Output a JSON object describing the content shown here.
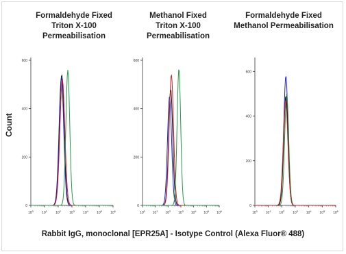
{
  "ylabel": "Count",
  "caption": "Rabbit IgG, monoclonal [EPR25A] - Isotype Control (Alexa Fluor® 488)",
  "colors": {
    "blue": "#2222cc",
    "red": "#cc2222",
    "green": "#229944",
    "black": "#111111"
  },
  "chart_data": [
    {
      "type": "line",
      "title_lines": [
        "Formaldehyde Fixed",
        "Triton X-100 Permeabilisation"
      ],
      "xscale": "log",
      "xlim": [
        1,
        1000000
      ],
      "ylim": [
        0,
        600
      ],
      "yticks": [
        0,
        200,
        400,
        600
      ],
      "series": [
        {
          "color": "black",
          "peak_x": 180,
          "peak_y": 540,
          "width": 0.17
        },
        {
          "color": "blue",
          "peak_x": 170,
          "peak_y": 530,
          "width": 0.17
        },
        {
          "color": "red",
          "peak_x": 200,
          "peak_y": 520,
          "width": 0.18
        },
        {
          "color": "green",
          "peak_x": 500,
          "peak_y": 560,
          "width": 0.14
        }
      ]
    },
    {
      "type": "line",
      "title_lines": [
        "Methanol Fixed",
        "Triton X-100 Permeabilisation"
      ],
      "xscale": "log",
      "xlim": [
        1,
        1000000
      ],
      "ylim": [
        0,
        600
      ],
      "yticks": [
        0,
        200,
        400,
        600
      ],
      "series": [
        {
          "color": "black",
          "peak_x": 160,
          "peak_y": 480,
          "width": 0.16
        },
        {
          "color": "blue",
          "peak_x": 130,
          "peak_y": 450,
          "width": 0.16
        },
        {
          "color": "red",
          "peak_x": 180,
          "peak_y": 540,
          "width": 0.17
        },
        {
          "color": "green",
          "peak_x": 700,
          "peak_y": 565,
          "width": 0.14
        }
      ]
    },
    {
      "type": "line",
      "title_lines": [
        "Formaldehyde Fixed",
        "Methanol Permeabilisation"
      ],
      "xscale": "log",
      "xlim": [
        1,
        1000000
      ],
      "ylim": [
        0,
        650
      ],
      "yticks": [
        0,
        200,
        400,
        600
      ],
      "series": [
        {
          "color": "blue",
          "peak_x": 200,
          "peak_y": 580,
          "width": 0.16
        },
        {
          "color": "green",
          "peak_x": 230,
          "peak_y": 500,
          "width": 0.15
        },
        {
          "color": "black",
          "peak_x": 200,
          "peak_y": 490,
          "width": 0.16
        },
        {
          "color": "red",
          "peak_x": 190,
          "peak_y": 470,
          "width": 0.17
        }
      ]
    }
  ]
}
